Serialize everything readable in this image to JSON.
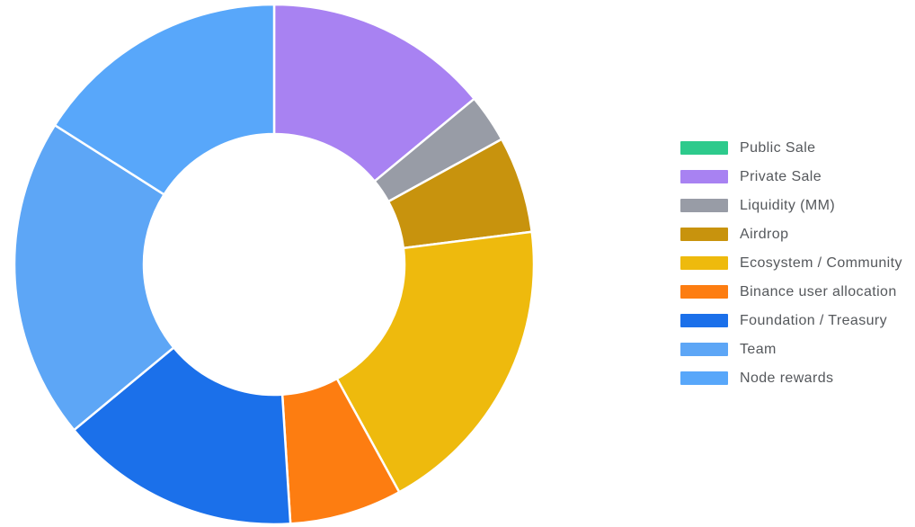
{
  "page": {
    "background_color": "#ffffff",
    "legend_text_color": "#55585c",
    "slice_border_color": "#ffffff"
  },
  "chart_data": {
    "type": "pie",
    "subtype": "donut",
    "title": "",
    "xlabel": "",
    "ylabel": "",
    "grid": false,
    "legend_position": "right",
    "start_angle": "12 o'clock, clockwise",
    "donut_hole_ratio": 0.5,
    "values_are_percent": true,
    "values_estimated_from_arc_angles": true,
    "series": [
      {
        "label": "Public Sale",
        "value": 0,
        "color": "#2dca8c"
      },
      {
        "label": "Private Sale",
        "value": 14,
        "color": "#a882f2"
      },
      {
        "label": "Liquidity (MM)",
        "value": 3,
        "color": "#989ca6"
      },
      {
        "label": "Airdrop",
        "value": 6,
        "color": "#c8930d"
      },
      {
        "label": "Ecosystem / Community",
        "value": 19,
        "color": "#eeba0d"
      },
      {
        "label": "Binance user allocation",
        "value": 7,
        "color": "#fd7d11"
      },
      {
        "label": "Foundation / Treasury",
        "value": 15,
        "color": "#1b70ea"
      },
      {
        "label": "Team",
        "value": 20,
        "color": "#5da6f6"
      },
      {
        "label": "Node rewards",
        "value": 16,
        "color": "#58a7fa"
      }
    ]
  }
}
